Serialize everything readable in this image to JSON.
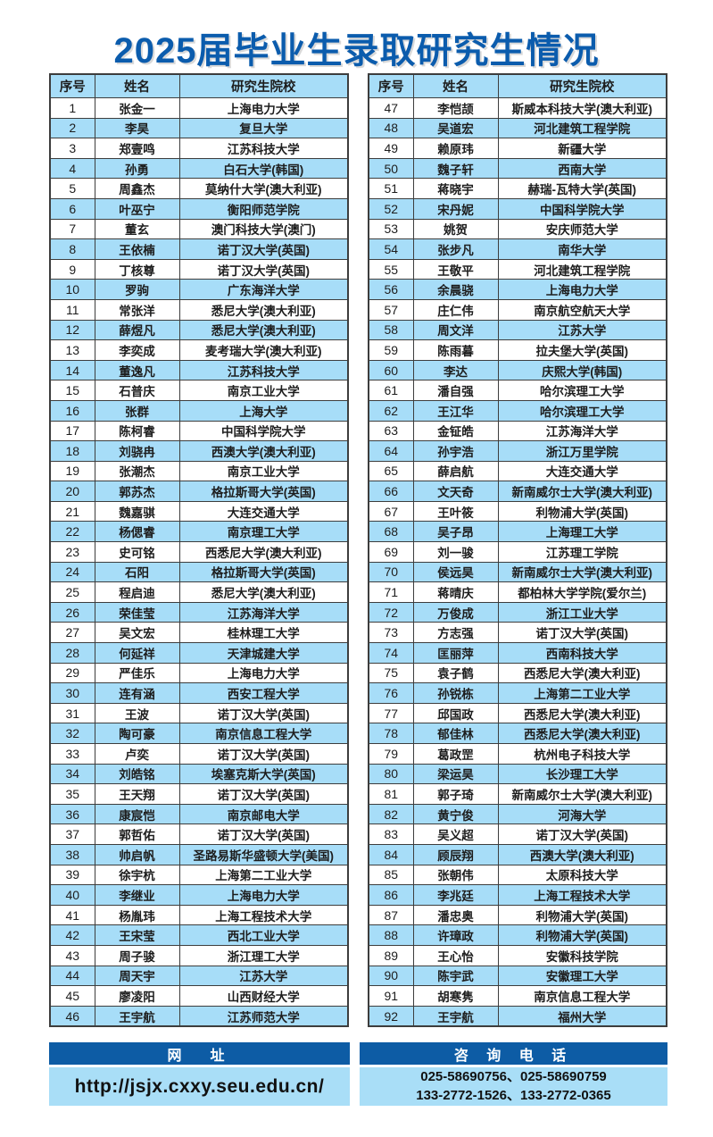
{
  "title": "2025届毕业生录取研究生情况",
  "columns": [
    "序号",
    "姓名",
    "研究生院校"
  ],
  "left_rows": [
    {
      "no": "1",
      "name": "张金一",
      "school": "上海电力大学"
    },
    {
      "no": "2",
      "name": "李昊",
      "school": "复旦大学"
    },
    {
      "no": "3",
      "name": "郑壹鸣",
      "school": "江苏科技大学"
    },
    {
      "no": "4",
      "name": "孙勇",
      "school": "白石大学(韩国)"
    },
    {
      "no": "5",
      "name": "周鑫杰",
      "school": "莫纳什大学(澳大利亚)"
    },
    {
      "no": "6",
      "name": "叶巫宁",
      "school": "衡阳师范学院"
    },
    {
      "no": "7",
      "name": "董玄",
      "school": "澳门科技大学(澳门)"
    },
    {
      "no": "8",
      "name": "王依楠",
      "school": "诺丁汉大学(英国)"
    },
    {
      "no": "9",
      "name": "丁核尊",
      "school": "诺丁汉大学(英国)"
    },
    {
      "no": "10",
      "name": "罗驹",
      "school": "广东海洋大学"
    },
    {
      "no": "11",
      "name": "常张洋",
      "school": "悉尼大学(澳大利亚)"
    },
    {
      "no": "12",
      "name": "薛煜凡",
      "school": "悉尼大学(澳大利亚)"
    },
    {
      "no": "13",
      "name": "李奕成",
      "school": "麦考瑞大学(澳大利亚)"
    },
    {
      "no": "14",
      "name": "董逸凡",
      "school": "江苏科技大学"
    },
    {
      "no": "15",
      "name": "石普庆",
      "school": "南京工业大学"
    },
    {
      "no": "16",
      "name": "张群",
      "school": "上海大学"
    },
    {
      "no": "17",
      "name": "陈柯睿",
      "school": "中国科学院大学"
    },
    {
      "no": "18",
      "name": "刘骁冉",
      "school": "西澳大学(澳大利亚)"
    },
    {
      "no": "19",
      "name": "张潮杰",
      "school": "南京工业大学"
    },
    {
      "no": "20",
      "name": "郭苏杰",
      "school": "格拉斯哥大学(英国)"
    },
    {
      "no": "21",
      "name": "魏嘉骐",
      "school": "大连交通大学"
    },
    {
      "no": "22",
      "name": "杨偲睿",
      "school": "南京理工大学"
    },
    {
      "no": "23",
      "name": "史可铭",
      "school": "西悉尼大学(澳大利亚)"
    },
    {
      "no": "24",
      "name": "石阳",
      "school": "格拉斯哥大学(英国)"
    },
    {
      "no": "25",
      "name": "程启迪",
      "school": "悉尼大学(澳大利亚)"
    },
    {
      "no": "26",
      "name": "荣佳莹",
      "school": "江苏海洋大学"
    },
    {
      "no": "27",
      "name": "吴文宏",
      "school": "桂林理工大学"
    },
    {
      "no": "28",
      "name": "何延祥",
      "school": "天津城建大学"
    },
    {
      "no": "29",
      "name": "严佳乐",
      "school": "上海电力大学"
    },
    {
      "no": "30",
      "name": "连有涵",
      "school": "西安工程大学"
    },
    {
      "no": "31",
      "name": "王波",
      "school": "诺丁汉大学(英国)"
    },
    {
      "no": "32",
      "name": "陶可豪",
      "school": "南京信息工程大学"
    },
    {
      "no": "33",
      "name": "卢奕",
      "school": "诺丁汉大学(英国)"
    },
    {
      "no": "34",
      "name": "刘皓铭",
      "school": "埃塞克斯大学(英国)"
    },
    {
      "no": "35",
      "name": "王天翔",
      "school": "诺丁汉大学(英国)"
    },
    {
      "no": "36",
      "name": "康宸恺",
      "school": "南京邮电大学"
    },
    {
      "no": "37",
      "name": "郭哲佑",
      "school": "诺丁汉大学(英国)"
    },
    {
      "no": "38",
      "name": "帅启帆",
      "school": "圣路易斯华盛顿大学(美国)"
    },
    {
      "no": "39",
      "name": "徐宇杭",
      "school": "上海第二工业大学"
    },
    {
      "no": "40",
      "name": "李继业",
      "school": "上海电力大学"
    },
    {
      "no": "41",
      "name": "杨胤玮",
      "school": "上海工程技术大学"
    },
    {
      "no": "42",
      "name": "王宋莹",
      "school": "西北工业大学"
    },
    {
      "no": "43",
      "name": "周子骏",
      "school": "浙江理工大学"
    },
    {
      "no": "44",
      "name": "周天宇",
      "school": "江苏大学"
    },
    {
      "no": "45",
      "name": "廖凌阳",
      "school": "山西财经大学"
    },
    {
      "no": "46",
      "name": "王宇航",
      "school": "江苏师范大学"
    }
  ],
  "right_rows": [
    {
      "no": "47",
      "name": "李恺颉",
      "school": "斯威本科技大学(澳大利亚)"
    },
    {
      "no": "48",
      "name": "吴道宏",
      "school": "河北建筑工程学院"
    },
    {
      "no": "49",
      "name": "赖原玮",
      "school": "新疆大学"
    },
    {
      "no": "50",
      "name": "魏子轩",
      "school": "西南大学"
    },
    {
      "no": "51",
      "name": "蒋晓宇",
      "school": "赫瑞-瓦特大学(英国)"
    },
    {
      "no": "52",
      "name": "宋丹妮",
      "school": "中国科学院大学"
    },
    {
      "no": "53",
      "name": "姚贺",
      "school": "安庆师范大学"
    },
    {
      "no": "54",
      "name": "张步凡",
      "school": "南华大学"
    },
    {
      "no": "55",
      "name": "王敬平",
      "school": "河北建筑工程学院"
    },
    {
      "no": "56",
      "name": "余晨骁",
      "school": "上海电力大学"
    },
    {
      "no": "57",
      "name": "庄仁伟",
      "school": "南京航空航天大学"
    },
    {
      "no": "58",
      "name": "周文洋",
      "school": "江苏大学"
    },
    {
      "no": "59",
      "name": "陈雨暮",
      "school": "拉夫堡大学(英国)"
    },
    {
      "no": "60",
      "name": "李达",
      "school": "庆熙大学(韩国)"
    },
    {
      "no": "61",
      "name": "潘自强",
      "school": "哈尔滨理工大学"
    },
    {
      "no": "62",
      "name": "王江华",
      "school": "哈尔滨理工大学"
    },
    {
      "no": "63",
      "name": "金钲皓",
      "school": "江苏海洋大学"
    },
    {
      "no": "64",
      "name": "孙宇浩",
      "school": "浙江万里学院"
    },
    {
      "no": "65",
      "name": "薛启航",
      "school": "大连交通大学"
    },
    {
      "no": "66",
      "name": "文天奇",
      "school": "新南威尔士大学(澳大利亚)"
    },
    {
      "no": "67",
      "name": "王叶筱",
      "school": "利物浦大学(英国)"
    },
    {
      "no": "68",
      "name": "吴子昂",
      "school": "上海理工大学"
    },
    {
      "no": "69",
      "name": "刘一骏",
      "school": "江苏理工学院"
    },
    {
      "no": "70",
      "name": "侯远昊",
      "school": "新南威尔士大学(澳大利亚)"
    },
    {
      "no": "71",
      "name": "蒋晴庆",
      "school": "都柏林大学学院(爱尔兰)"
    },
    {
      "no": "72",
      "name": "万俊成",
      "school": "浙江工业大学"
    },
    {
      "no": "73",
      "name": "方志强",
      "school": "诺丁汉大学(英国)"
    },
    {
      "no": "74",
      "name": "匡丽萍",
      "school": "西南科技大学"
    },
    {
      "no": "75",
      "name": "袁子鹤",
      "school": "西悉尼大学(澳大利亚)"
    },
    {
      "no": "76",
      "name": "孙锐栋",
      "school": "上海第二工业大学"
    },
    {
      "no": "77",
      "name": "邱国政",
      "school": "西悉尼大学(澳大利亚)"
    },
    {
      "no": "78",
      "name": "郁佳林",
      "school": "西悉尼大学(澳大利亚)"
    },
    {
      "no": "79",
      "name": "葛政罡",
      "school": "杭州电子科技大学"
    },
    {
      "no": "80",
      "name": "梁运昊",
      "school": "长沙理工大学"
    },
    {
      "no": "81",
      "name": "郭子琦",
      "school": "新南威尔士大学(澳大利亚)"
    },
    {
      "no": "82",
      "name": "黄宁俊",
      "school": "河海大学"
    },
    {
      "no": "83",
      "name": "吴义超",
      "school": "诺丁汉大学(英国)"
    },
    {
      "no": "84",
      "name": "顾辰翔",
      "school": "西澳大学(澳大利亚)"
    },
    {
      "no": "85",
      "name": "张朝伟",
      "school": "太原科技大学"
    },
    {
      "no": "86",
      "name": "李兆廷",
      "school": "上海工程技术大学"
    },
    {
      "no": "87",
      "name": "潘忠奥",
      "school": "利物浦大学(英国)"
    },
    {
      "no": "88",
      "name": "许璋政",
      "school": "利物浦大学(英国)"
    },
    {
      "no": "89",
      "name": "王心怡",
      "school": "安徽科技学院"
    },
    {
      "no": "90",
      "name": "陈宇武",
      "school": "安徽理工大学"
    },
    {
      "no": "91",
      "name": "胡寒隽",
      "school": "南京信息工程大学"
    },
    {
      "no": "92",
      "name": "王宇航",
      "school": "福州大学"
    }
  ],
  "footer": {
    "website_label": "网　址",
    "website_url": "http://jsjx.cxxy.seu.edu.cn/",
    "phone_label": "咨 询 电 话",
    "phone_line1": "025-58690756、025-58690759",
    "phone_line2": "133-2772-1526、133-2772-0365"
  },
  "colors": {
    "title_blue": "#0b5cad",
    "header_blue": "#a7ddf8",
    "row_alt_blue": "#a7ddf8",
    "footer_dark_blue": "#0d5ca5",
    "footer_light_blue": "#a9def7",
    "border": "#3d3d3d",
    "text": "#1d1d1d"
  }
}
